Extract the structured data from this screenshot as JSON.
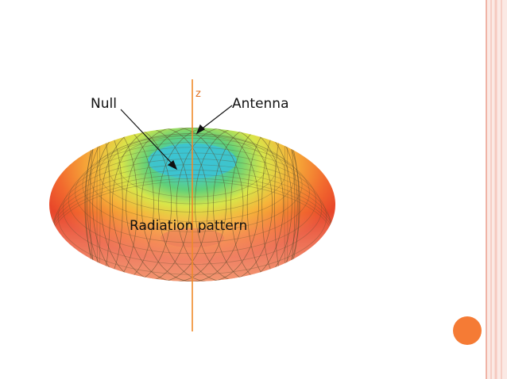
{
  "labels": {
    "null": "Null",
    "antenna": "Antenna",
    "pattern": "Radiation pattern",
    "axis": "z"
  }
}
